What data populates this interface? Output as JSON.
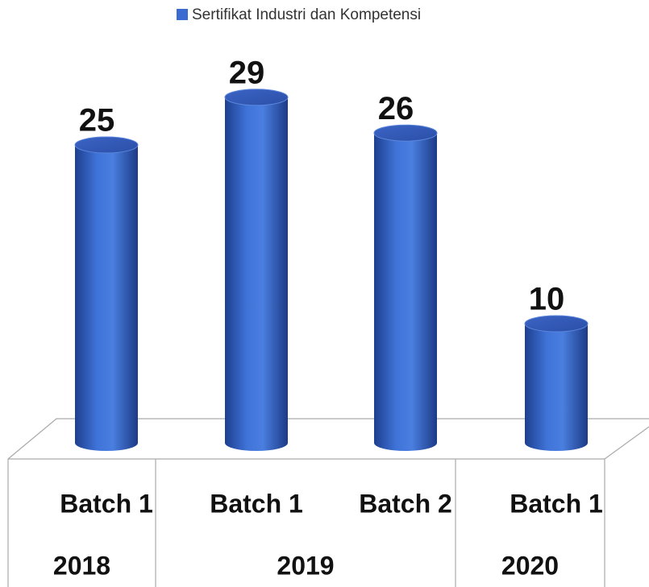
{
  "chart_data": {
    "type": "bar",
    "series": [
      {
        "name": "Sertifikat Industri dan Kompetensi",
        "color": "#3a6bd0",
        "values": [
          25,
          29,
          26,
          10
        ]
      }
    ],
    "groups": [
      {
        "name": "2018",
        "categories": [
          "Batch 1"
        ]
      },
      {
        "name": "2019",
        "categories": [
          "Batch 1",
          "Batch 2"
        ]
      },
      {
        "name": "2020",
        "categories": [
          "Batch 1"
        ]
      }
    ]
  }
}
